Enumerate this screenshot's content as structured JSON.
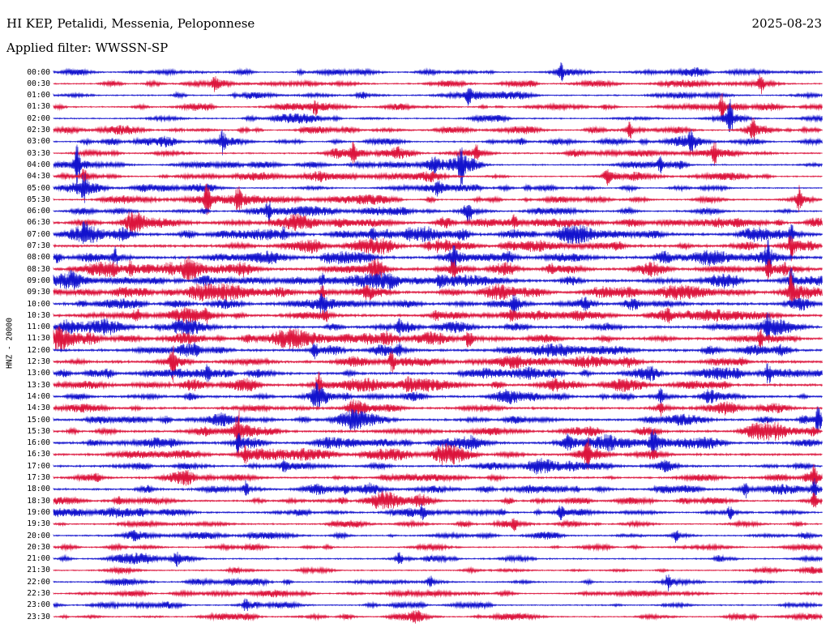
{
  "header": {
    "station_title": "HI KEP, Petalidi, Messenia, Peloponnese",
    "date": "2025-08-23",
    "filter_label": "Applied filter: WWSSN-SP"
  },
  "axis": {
    "channel_label": "HNZ - 20000"
  },
  "colors": {
    "background": "#ffffff",
    "text": "#000000",
    "trace_blue": "#1212cd",
    "trace_red": "#dc143c"
  },
  "chart_data": {
    "type": "line",
    "subtype": "seismogram-helicorder",
    "title": "HI KEP, Petalidi, Messenia, Peloponnese",
    "date": "2025-08-23",
    "filter": "WWSSN-SP",
    "channel": "HNZ",
    "scale": 20000,
    "minutes_per_row": 30,
    "rows": 48,
    "description": "24-hour helicorder: 48 traces of 30 minutes each, alternating blue/red, showing continuous seismic waveform with ambient noise and transient event spikes",
    "legend_position": "none",
    "grid": false,
    "row_labels": [
      "00:00",
      "00:30",
      "01:00",
      "01:30",
      "02:00",
      "02:30",
      "03:00",
      "03:30",
      "04:00",
      "04:30",
      "05:00",
      "05:30",
      "06:00",
      "06:30",
      "07:00",
      "07:30",
      "08:00",
      "08:30",
      "09:00",
      "09:30",
      "10:00",
      "10:30",
      "11:00",
      "11:30",
      "12:00",
      "12:30",
      "13:00",
      "13:30",
      "14:00",
      "14:30",
      "15:00",
      "15:30",
      "16:00",
      "16:30",
      "17:00",
      "17:30",
      "18:00",
      "18:30",
      "19:00",
      "19:30",
      "20:00",
      "20:30",
      "21:00",
      "21:30",
      "22:00",
      "22:30",
      "23:00",
      "23:30"
    ],
    "trace_colors": {
      "even": "#1212cd",
      "odd": "#dc143c"
    },
    "row_noise_scale": [
      0.9,
      0.9,
      0.9,
      0.9,
      0.9,
      0.9,
      0.95,
      0.95,
      0.95,
      0.9,
      0.9,
      1.0,
      1.05,
      1.6,
      1.8,
      1.8,
      1.85,
      1.8,
      1.8,
      1.75,
      1.75,
      1.7,
      1.7,
      1.7,
      1.65,
      1.7,
      1.6,
      1.6,
      1.55,
      1.5,
      1.45,
      1.5,
      1.5,
      1.45,
      1.3,
      1.25,
      1.3,
      1.2,
      1.05,
      0.95,
      0.95,
      0.9,
      0.9,
      0.85,
      0.9,
      0.8,
      0.85,
      0.8
    ],
    "events": [
      [
        0,
        0.66,
        7
      ],
      [
        1,
        0.21,
        6
      ],
      [
        1,
        0.92,
        7
      ],
      [
        2,
        0.54,
        6
      ],
      [
        3,
        0.34,
        5
      ],
      [
        3,
        0.87,
        10
      ],
      [
        4,
        0.88,
        14
      ],
      [
        5,
        0.75,
        6
      ],
      [
        5,
        0.91,
        8
      ],
      [
        6,
        0.22,
        9
      ],
      [
        6,
        0.83,
        7
      ],
      [
        7,
        0.39,
        7
      ],
      [
        7,
        0.55,
        6
      ],
      [
        7,
        0.86,
        8
      ],
      [
        8,
        0.03,
        16
      ],
      [
        8,
        0.53,
        13
      ],
      [
        8,
        0.79,
        6
      ],
      [
        9,
        0.04,
        7
      ],
      [
        9,
        0.72,
        5
      ],
      [
        10,
        0.04,
        10
      ],
      [
        10,
        0.5,
        6
      ],
      [
        11,
        0.2,
        12
      ],
      [
        11,
        0.24,
        9
      ],
      [
        11,
        0.97,
        10
      ],
      [
        12,
        0.28,
        7
      ],
      [
        12,
        0.54,
        8
      ],
      [
        13,
        0.1,
        5
      ],
      [
        13,
        0.6,
        5
      ],
      [
        14,
        0.3,
        5
      ],
      [
        14,
        0.96,
        7
      ],
      [
        15,
        0.5,
        5
      ],
      [
        15,
        0.96,
        9
      ],
      [
        16,
        0.08,
        7
      ],
      [
        16,
        0.52,
        9
      ],
      [
        16,
        0.93,
        12
      ],
      [
        17,
        0.1,
        6
      ],
      [
        17,
        0.52,
        7
      ],
      [
        17,
        0.93,
        8
      ],
      [
        18,
        0.35,
        5
      ],
      [
        18,
        0.96,
        10
      ],
      [
        19,
        0.35,
        6
      ],
      [
        19,
        0.96,
        13
      ],
      [
        20,
        0.35,
        8
      ],
      [
        20,
        0.6,
        5
      ],
      [
        21,
        0.2,
        5
      ],
      [
        21,
        0.8,
        5
      ],
      [
        22,
        0.45,
        5
      ],
      [
        22,
        0.93,
        6
      ],
      [
        23,
        0.54,
        6
      ],
      [
        23,
        0.92,
        8
      ],
      [
        24,
        0.34,
        6
      ],
      [
        24,
        0.45,
        5
      ],
      [
        25,
        0.155,
        14
      ],
      [
        25,
        0.44,
        8
      ],
      [
        26,
        0.2,
        5
      ],
      [
        26,
        0.93,
        6
      ],
      [
        27,
        0.345,
        10
      ],
      [
        28,
        0.34,
        6
      ],
      [
        28,
        0.79,
        6
      ],
      [
        29,
        0.79,
        6
      ],
      [
        30,
        0.995,
        12
      ],
      [
        31,
        0.24,
        15
      ],
      [
        32,
        0.24,
        8
      ],
      [
        32,
        0.67,
        6
      ],
      [
        32,
        0.78,
        6
      ],
      [
        33,
        0.25,
        7
      ],
      [
        33,
        0.695,
        11
      ],
      [
        34,
        0.3,
        4
      ],
      [
        35,
        0.99,
        8
      ],
      [
        36,
        0.25,
        6
      ],
      [
        36,
        0.9,
        6
      ],
      [
        36,
        0.99,
        8
      ],
      [
        37,
        0.99,
        6
      ],
      [
        38,
        0.48,
        5
      ],
      [
        38,
        0.66,
        6
      ],
      [
        38,
        0.88,
        5
      ],
      [
        39,
        0.6,
        4
      ],
      [
        40,
        0.81,
        5
      ],
      [
        42,
        0.16,
        5
      ],
      [
        42,
        0.45,
        5
      ],
      [
        44,
        0.49,
        5
      ],
      [
        44,
        0.8,
        5
      ],
      [
        46,
        0.25,
        5
      ]
    ]
  }
}
